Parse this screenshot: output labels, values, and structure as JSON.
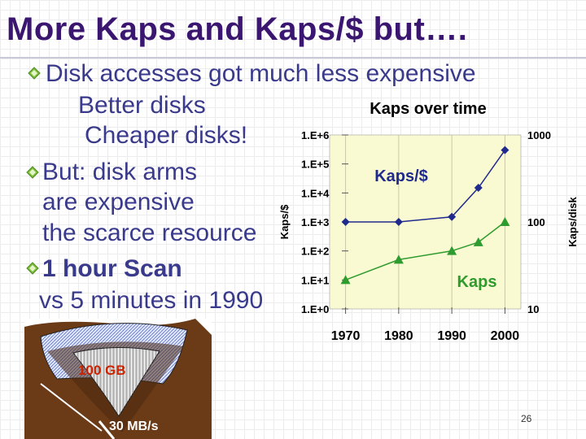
{
  "slide": {
    "title": "More Kaps and Kaps/$ but….",
    "page_number": "26",
    "bullets": [
      {
        "text": " Disk accesses got much less expensive"
      },
      {
        "text": "Better disks"
      },
      {
        "text": "Cheaper disks!"
      },
      {
        "text": "But: disk arms"
      },
      {
        "text": "are expensive"
      },
      {
        "text": "the scarce resource"
      },
      {
        "text": "1 hour Scan"
      },
      {
        "text": "vs 5 minutes in 1990"
      }
    ],
    "colors": {
      "title": "#3a1670",
      "text": "#3a3a8c",
      "bullet": "#7fbf3f"
    }
  },
  "illustration": {
    "capacity_label": "100 GB",
    "bandwidth_label": "30 MB/s",
    "capacity_color": "#cc2200"
  },
  "chart_data": {
    "type": "line",
    "title": "Kaps over time",
    "x": [
      1970,
      1980,
      1990,
      1995,
      2000
    ],
    "x_ticks": [
      "1970",
      "1980",
      "1990",
      "2000"
    ],
    "xlim": [
      1967,
      2003
    ],
    "left_axis": {
      "label": "Kaps/$",
      "scale": "log",
      "ylim": [
        1,
        1000000
      ],
      "ticks": [
        "1.E+0",
        "1.E+1",
        "1.E+2",
        "1.E+3",
        "1.E+4",
        "1.E+5",
        "1.E+6"
      ]
    },
    "right_axis": {
      "label": "Kaps/disk",
      "scale": "log",
      "ylim": [
        10,
        1000
      ],
      "ticks": [
        "10",
        "100",
        "1000"
      ]
    },
    "series": [
      {
        "name": "Kaps/$",
        "axis": "left",
        "marker": "diamond",
        "color": "#1f2a8c",
        "values": [
          1000,
          1000,
          1500,
          15000,
          300000
        ]
      },
      {
        "name": "Kaps",
        "axis": "left",
        "marker": "triangle",
        "color": "#2e9b2e",
        "values": [
          10,
          50,
          100,
          200,
          1000
        ]
      }
    ],
    "plot_background": "#fafad2",
    "grid": "vertical"
  }
}
